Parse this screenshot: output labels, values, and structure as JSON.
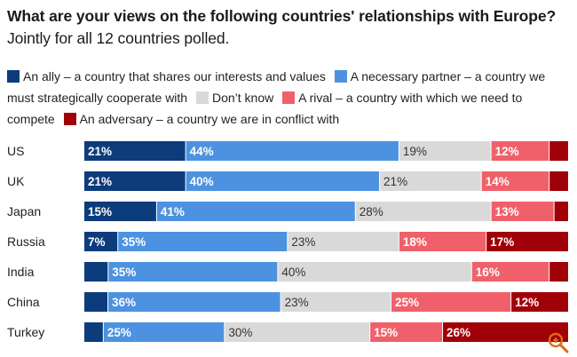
{
  "title_bold": "What are your views on the following countries' relationships with Europe?",
  "title_rest": " Jointly for all 12 countries polled.",
  "legend": [
    {
      "label": "An ally – a country that shares our interests and values",
      "color": "#0c3c7c"
    },
    {
      "label": "A necessary partner – a country we must strategically cooperate with",
      "color": "#4c92e0"
    },
    {
      "label": "Don’t know",
      "color": "#d9d9d9"
    },
    {
      "label": "A rival – a country with which we need to compete",
      "color": "#f0606a"
    },
    {
      "label": "An adversary – a country we are in conflict with",
      "color": "#a00008"
    }
  ],
  "zoom_icon": "magnifier-icon",
  "chart_data": {
    "type": "bar",
    "orientation": "horizontal",
    "stacked": true,
    "normalized": true,
    "categories": [
      "US",
      "UK",
      "Japan",
      "Russia",
      "India",
      "China",
      "Turkey"
    ],
    "series": [
      {
        "name": "An ally – a country that shares our interests and values",
        "color": "#0c3c7c",
        "values": [
          21,
          21,
          15,
          7,
          5,
          5,
          4
        ],
        "labels": [
          "21%",
          "21%",
          "15%",
          "7%",
          "",
          "",
          ""
        ]
      },
      {
        "name": "A necessary partner – a country we must strategically cooperate with",
        "color": "#4c92e0",
        "values": [
          44,
          40,
          41,
          35,
          35,
          36,
          25
        ],
        "labels": [
          "44%",
          "40%",
          "41%",
          "35%",
          "35%",
          "36%",
          "25%"
        ]
      },
      {
        "name": "Don’t know",
        "color": "#d9d9d9",
        "values": [
          19,
          21,
          28,
          23,
          40,
          23,
          30
        ],
        "labels": [
          "19%",
          "21%",
          "28%",
          "23%",
          "40%",
          "23%",
          "30%"
        ]
      },
      {
        "name": "A rival – a country with which we need to compete",
        "color": "#f0606a",
        "values": [
          12,
          14,
          13,
          18,
          16,
          25,
          15
        ],
        "labels": [
          "12%",
          "14%",
          "13%",
          "18%",
          "16%",
          "25%",
          "15%"
        ]
      },
      {
        "name": "An adversary – a country we are in conflict with",
        "color": "#a00008",
        "values": [
          4,
          4,
          3,
          17,
          4,
          12,
          26
        ],
        "labels": [
          "",
          "",
          "",
          "17%",
          "",
          "12%",
          "26%"
        ]
      }
    ]
  }
}
